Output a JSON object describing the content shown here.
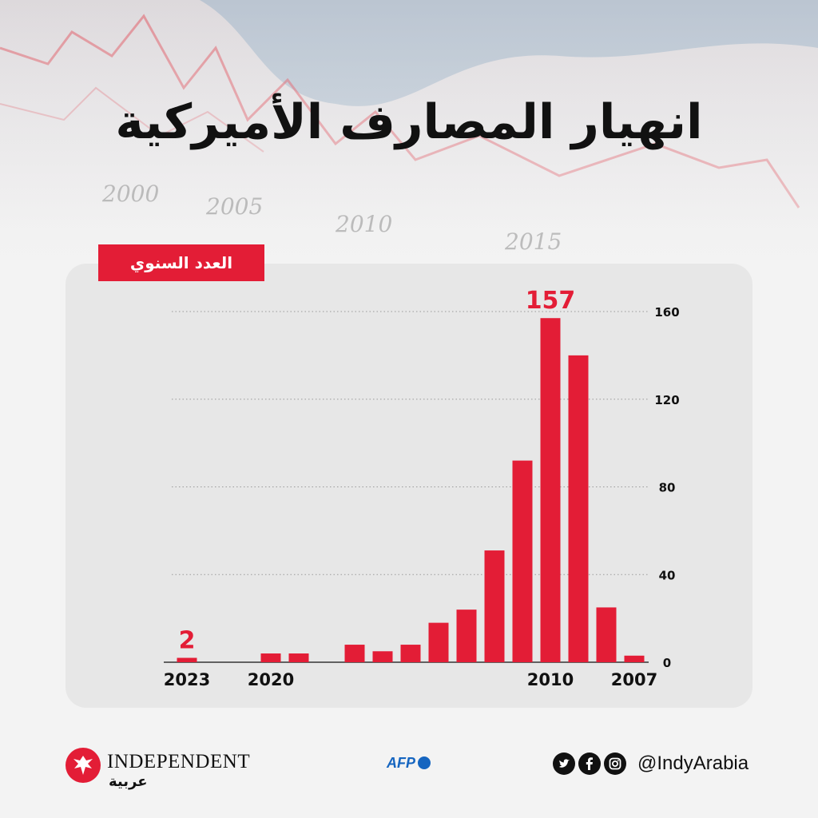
{
  "header": {
    "title": "انهيار المصارف الأميركية",
    "background_years": [
      "2000",
      "2005",
      "2010",
      "2015"
    ]
  },
  "chart_tag": "العدد السنوي",
  "chart_data": {
    "type": "bar",
    "x_direction": "right-to-left",
    "categories": [
      "2007",
      "2008",
      "2009",
      "2010",
      "2011",
      "2012",
      "2013",
      "2014",
      "2015",
      "2016",
      "2017",
      "2018",
      "2019",
      "2020",
      "2021",
      "2022",
      "2023"
    ],
    "values": [
      3,
      25,
      140,
      157,
      92,
      51,
      24,
      18,
      8,
      5,
      8,
      0,
      4,
      4,
      0,
      0,
      2
    ],
    "x_tick_labels": [
      "2007",
      "2010",
      "2020",
      "2023"
    ],
    "y_ticks": [
      0,
      40,
      80,
      120,
      160
    ],
    "ylim": [
      0,
      160
    ],
    "y_axis_side": "right",
    "grid": true,
    "grid_style": "dotted",
    "highlighted_labels": [
      {
        "category": "2010",
        "text": "157"
      },
      {
        "category": "2023",
        "text": "2"
      }
    ],
    "bar_color": "#e31d36",
    "axis_color": "#111111"
  },
  "footer": {
    "brand_name": "INDEPENDENT",
    "brand_arabic": "عربية",
    "agency": "AFP",
    "social_handle": "@IndyArabia",
    "social_icons": [
      "twitter-icon",
      "facebook-icon",
      "instagram-icon"
    ]
  },
  "colors": {
    "accent": "#e31d36",
    "afp_blue": "#1565c0"
  }
}
